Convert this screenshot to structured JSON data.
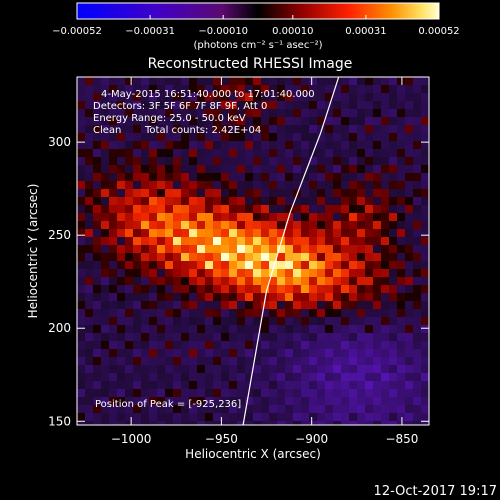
{
  "chart_data": {
    "type": "heatmap",
    "title": "Reconstructed RHESSI Image",
    "xlabel": "Heliocentric X (arcsec)",
    "ylabel": "Heliocentric Y (arcsec)",
    "xlim": [
      -1030,
      -835
    ],
    "ylim": [
      148,
      335
    ],
    "xticks": [
      -1000,
      -950,
      -900,
      -850
    ],
    "xtick_labels": [
      "−1000",
      "−950",
      "−900",
      "−850"
    ],
    "yticks": [
      150,
      200,
      250,
      300
    ],
    "ytick_labels": [
      "150",
      "200",
      "250",
      "300"
    ],
    "colorbar": {
      "min": -0.00052,
      "max": 0.00052,
      "ticks": [
        -0.00052,
        -0.00031,
        -0.0001,
        0.0001,
        0.00031,
        0.00052
      ],
      "tick_labels": [
        "−0.00052",
        "−0.00031",
        "−0.00010",
        "0.00010",
        "0.00031",
        "0.00052"
      ],
      "unit_label": "(photons cm⁻² s⁻¹ asec⁻²)"
    },
    "annotations": {
      "time_range": "4‑May‑2015 16:51:40.000 to 17:01:40.000",
      "detectors": "Detectors: 3F 5F 6F 7F 8F 9F, Att 0",
      "energy_range": "Energy Range: 25.0 ‑ 50.0 keV",
      "clean_label": "Clean",
      "total_counts": "Total counts: 2.42E+04",
      "peak_position": "Position of Peak = [‑925,236]"
    },
    "peak": {
      "x": -925,
      "y": 236
    },
    "limb": [
      [
        -938,
        148
      ],
      [
        -925,
        220
      ],
      [
        -912,
        262
      ],
      [
        -895,
        305
      ],
      [
        -885,
        335
      ]
    ],
    "footer_date": "12-Oct-2017 19:17",
    "colors": {
      "background": "#000000",
      "text": "#ffffff",
      "limb": "#ffffff"
    }
  }
}
